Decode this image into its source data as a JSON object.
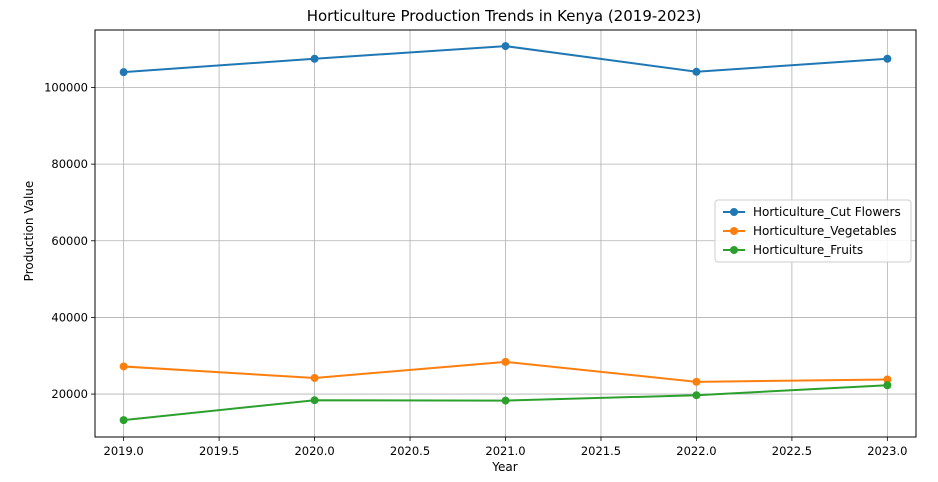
{
  "chart_data": {
    "type": "line",
    "title": "Horticulture Production Trends in Kenya (2019-2023)",
    "xlabel": "Year",
    "ylabel": "Production Value",
    "x": [
      2019.0,
      2020.0,
      2021.0,
      2022.0,
      2023.0
    ],
    "xlim": [
      2018.85,
      2023.15
    ],
    "ylim": [
      8800,
      115000
    ],
    "x_ticks": [
      2019.0,
      2019.5,
      2020.0,
      2020.5,
      2021.0,
      2021.5,
      2022.0,
      2022.5,
      2023.0
    ],
    "x_tick_labels": [
      "2019.0",
      "2019.5",
      "2020.0",
      "2020.5",
      "2021.0",
      "2021.5",
      "2022.0",
      "2022.5",
      "2023.0"
    ],
    "y_ticks": [
      20000,
      40000,
      60000,
      80000,
      100000
    ],
    "y_tick_labels": [
      "20000",
      "40000",
      "60000",
      "80000",
      "100000"
    ],
    "grid": true,
    "legend_position": "center-right",
    "series": [
      {
        "name": "Horticulture_Cut Flowers",
        "color": "#1f77b4",
        "values": [
          104000,
          107500,
          110800,
          104100,
          107500
        ]
      },
      {
        "name": "Horticulture_Vegetables",
        "color": "#ff7f0e",
        "values": [
          27200,
          24200,
          28400,
          23200,
          23800
        ]
      },
      {
        "name": "Horticulture_Fruits",
        "color": "#2ca02c",
        "values": [
          13200,
          18400,
          18300,
          19700,
          22300
        ]
      }
    ]
  }
}
